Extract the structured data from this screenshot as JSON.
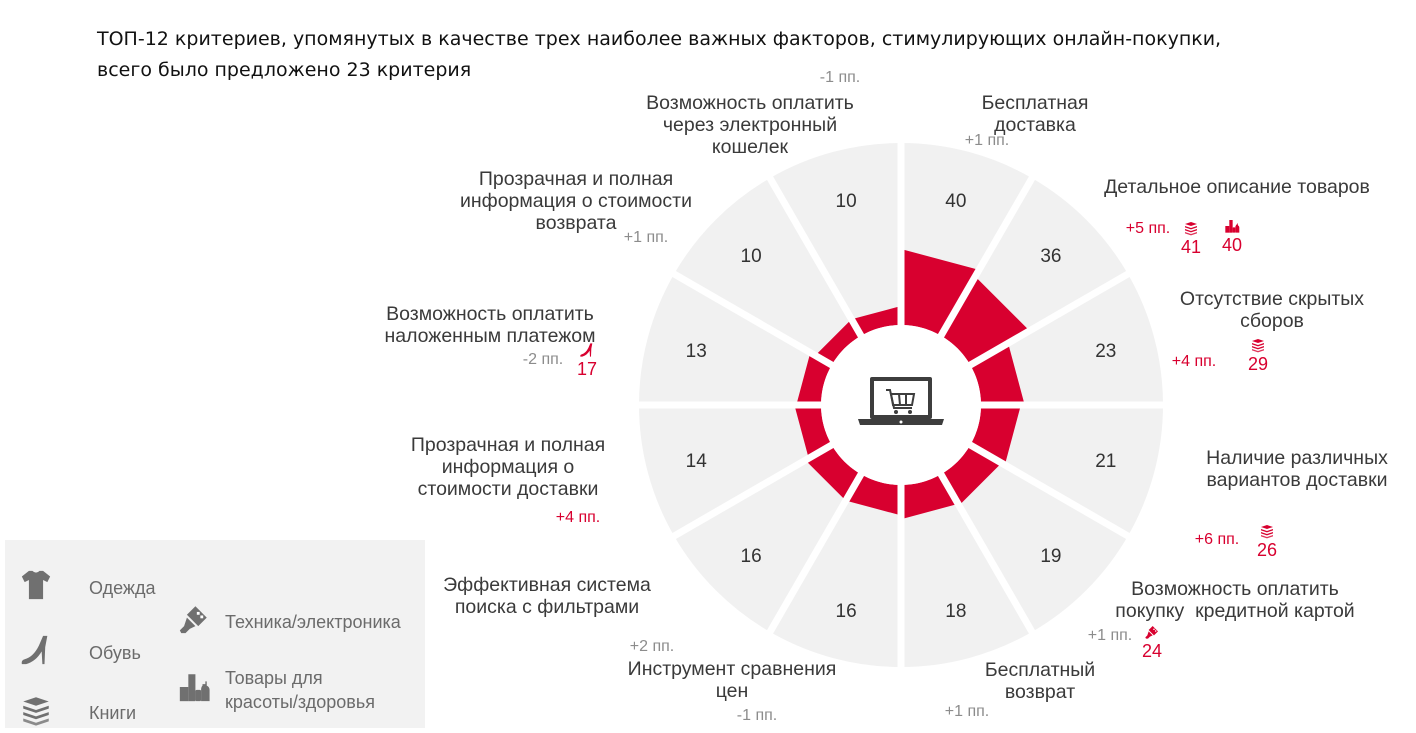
{
  "title": {
    "line1": "ТОП-12 критериев, упомянутых в качестве трех наиболее важных факторов, стимулирующих онлайн-покупки,",
    "line2": "всего было предложено 23 критерия"
  },
  "center_icon": "laptop-cart-icon",
  "colors": {
    "accent": "#d8002f",
    "segment_bg": "#f1f1f1",
    "label": "#3a3a3a",
    "change_neutral": "#8c8c8c",
    "change_significant": "#d8002f"
  },
  "chart_data": {
    "type": "polar-bar",
    "unit": "%",
    "criteria": [
      {
        "label": "Бесплатная\nдоставка",
        "value": 40,
        "change": "+1 пп.",
        "significant": false,
        "highlights": []
      },
      {
        "label": "Детальное описание товаров",
        "value": 36,
        "change": "+5 пп.",
        "significant": true,
        "highlights": [
          {
            "category": "Книги",
            "icon": "books-icon",
            "value": "41"
          },
          {
            "category": "Товары для красоты/здоровья",
            "icon": "beauty-products-icon",
            "value": "40"
          }
        ]
      },
      {
        "label": "Отсутствие скрытых\nсборов",
        "value": 23,
        "change": "+4 пп.",
        "significant": true,
        "highlights": [
          {
            "category": "Книги",
            "icon": "books-icon",
            "value": "29"
          }
        ]
      },
      {
        "label": "Наличие различных\nвариантов доставки",
        "value": 21,
        "change": "+6 пп.",
        "significant": true,
        "highlights": [
          {
            "category": "Книги",
            "icon": "books-icon",
            "value": "26"
          }
        ]
      },
      {
        "label": "Возможность оплатить\nпокупку  кредитной картой",
        "value": 19,
        "change": "+1 пп.",
        "significant": false,
        "highlights": [
          {
            "category": "Техника/электроника",
            "icon": "electronics-icon",
            "value": "24"
          }
        ]
      },
      {
        "label": "Бесплатный\nвозврат",
        "value": 18,
        "change": "+1 пп.",
        "significant": false,
        "highlights": []
      },
      {
        "label": "Инструмент сравнения\nцен",
        "value": 16,
        "change": "-1 пп.",
        "significant": false,
        "highlights": []
      },
      {
        "label": "Эффективная система\nпоиска с фильтрами",
        "value": 16,
        "change": "+2 пп.",
        "significant": false,
        "highlights": []
      },
      {
        "label": "Прозрачная и полная\nинформация о\nстоимости доставки",
        "value": 14,
        "change": "+4 пп.",
        "significant": true,
        "highlights": []
      },
      {
        "label": "Возможность оплатить\nналоженным платежом",
        "value": 13,
        "change": "-2 пп.",
        "significant": false,
        "highlights": [
          {
            "category": "Обувь",
            "icon": "shoe-icon",
            "value": "17"
          }
        ]
      },
      {
        "label": "Прозрачная и полная\nинформация о стоимости\nвозврата",
        "value": 10,
        "change": "+1 пп.",
        "significant": false,
        "highlights": []
      },
      {
        "label": "Возможность оплатить\nчерез электронный\nкошелек",
        "value": 10,
        "change": "-1 пп.",
        "significant": false,
        "highlights": []
      }
    ]
  },
  "legend": [
    {
      "label": "Одежда",
      "icon": "tshirt-icon"
    },
    {
      "label": "Обувь",
      "icon": "shoe-icon"
    },
    {
      "label": "Книги",
      "icon": "books-icon"
    },
    {
      "label": "Техника/электроника",
      "icon": "electronics-icon"
    },
    {
      "label": "Товары для\nкрасоты/здоровья",
      "icon": "beauty-products-icon"
    }
  ]
}
